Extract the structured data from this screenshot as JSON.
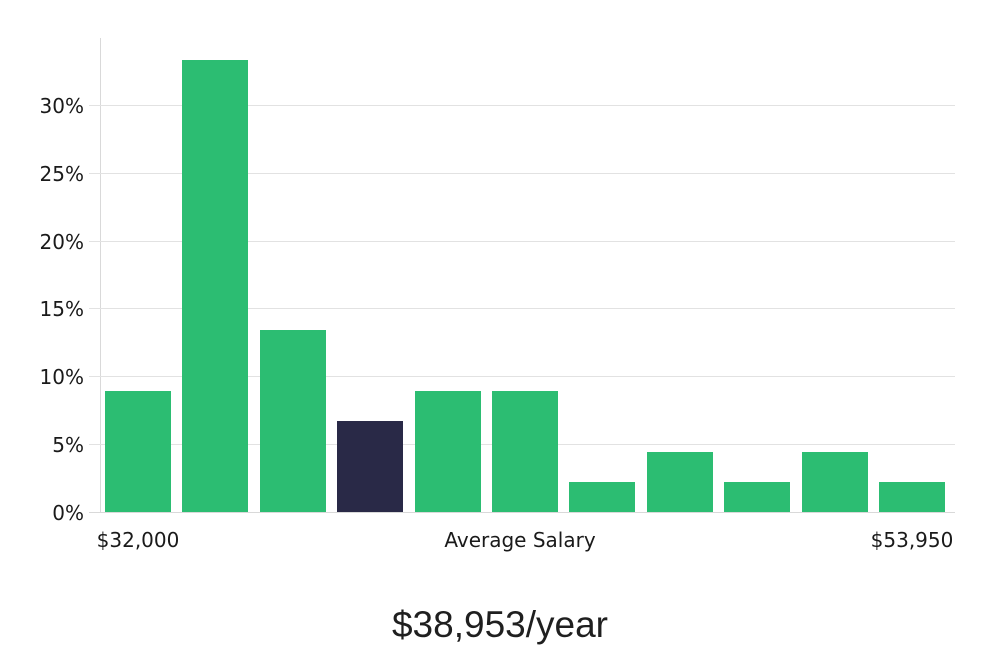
{
  "chart_data": {
    "type": "bar",
    "title": "$38,953/year",
    "values": [
      8.9,
      33.3,
      13.4,
      6.7,
      8.9,
      8.9,
      2.2,
      4.4,
      2.2,
      4.4,
      2.2
    ],
    "highlight_index": 3,
    "y_tick_values": [
      0,
      5,
      10,
      15,
      20,
      25,
      30
    ],
    "y_tick_labels": [
      "0%",
      "5%",
      "10%",
      "15%",
      "20%",
      "25%",
      "30%"
    ],
    "ylim": [
      0,
      35
    ],
    "x_axis_labels": [
      "$32,000",
      "Average Salary",
      "$53,950"
    ],
    "grid": true,
    "legend": "none",
    "colors": {
      "bar": "#2cbd72",
      "highlight_bar": "#292947",
      "gridline": "#e2e2e2",
      "axis_line": "#d9d9d9",
      "tick_text": "#1a1a1a",
      "title_text": "#1f1f1f",
      "background": "#ffffff"
    }
  }
}
